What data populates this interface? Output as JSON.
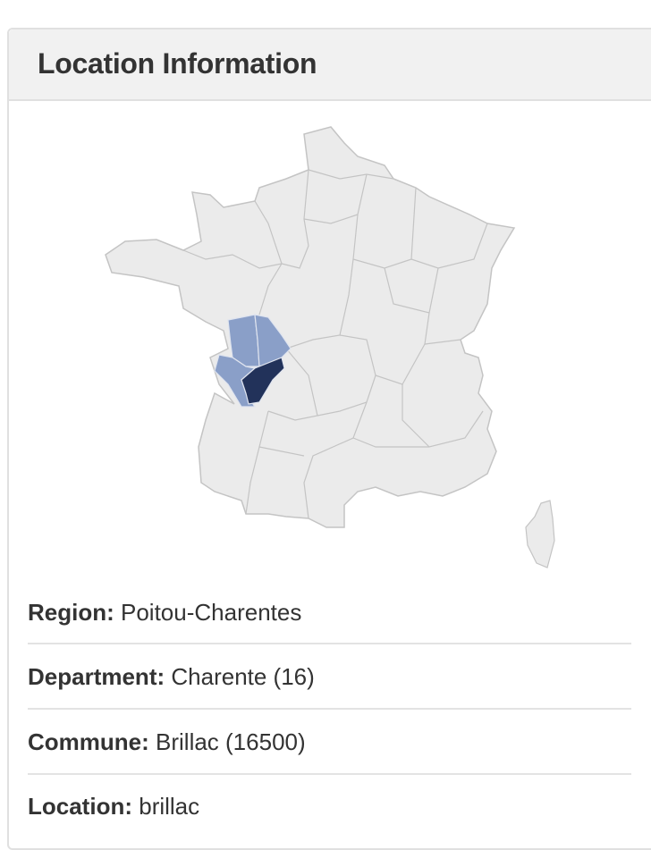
{
  "panel": {
    "title": "Location Information"
  },
  "map": {
    "base_color": "#ebebeb",
    "border_color": "#c4c4c4",
    "region_highlight_color": "#8a9fc8",
    "department_highlight_color": "#22325a"
  },
  "details": [
    {
      "label": "Region:",
      "value": "Poitou-Charentes"
    },
    {
      "label": "Department:",
      "value": "Charente (16)"
    },
    {
      "label": "Commune:",
      "value": "Brillac (16500)"
    },
    {
      "label": "Location:",
      "value": "brillac"
    }
  ]
}
